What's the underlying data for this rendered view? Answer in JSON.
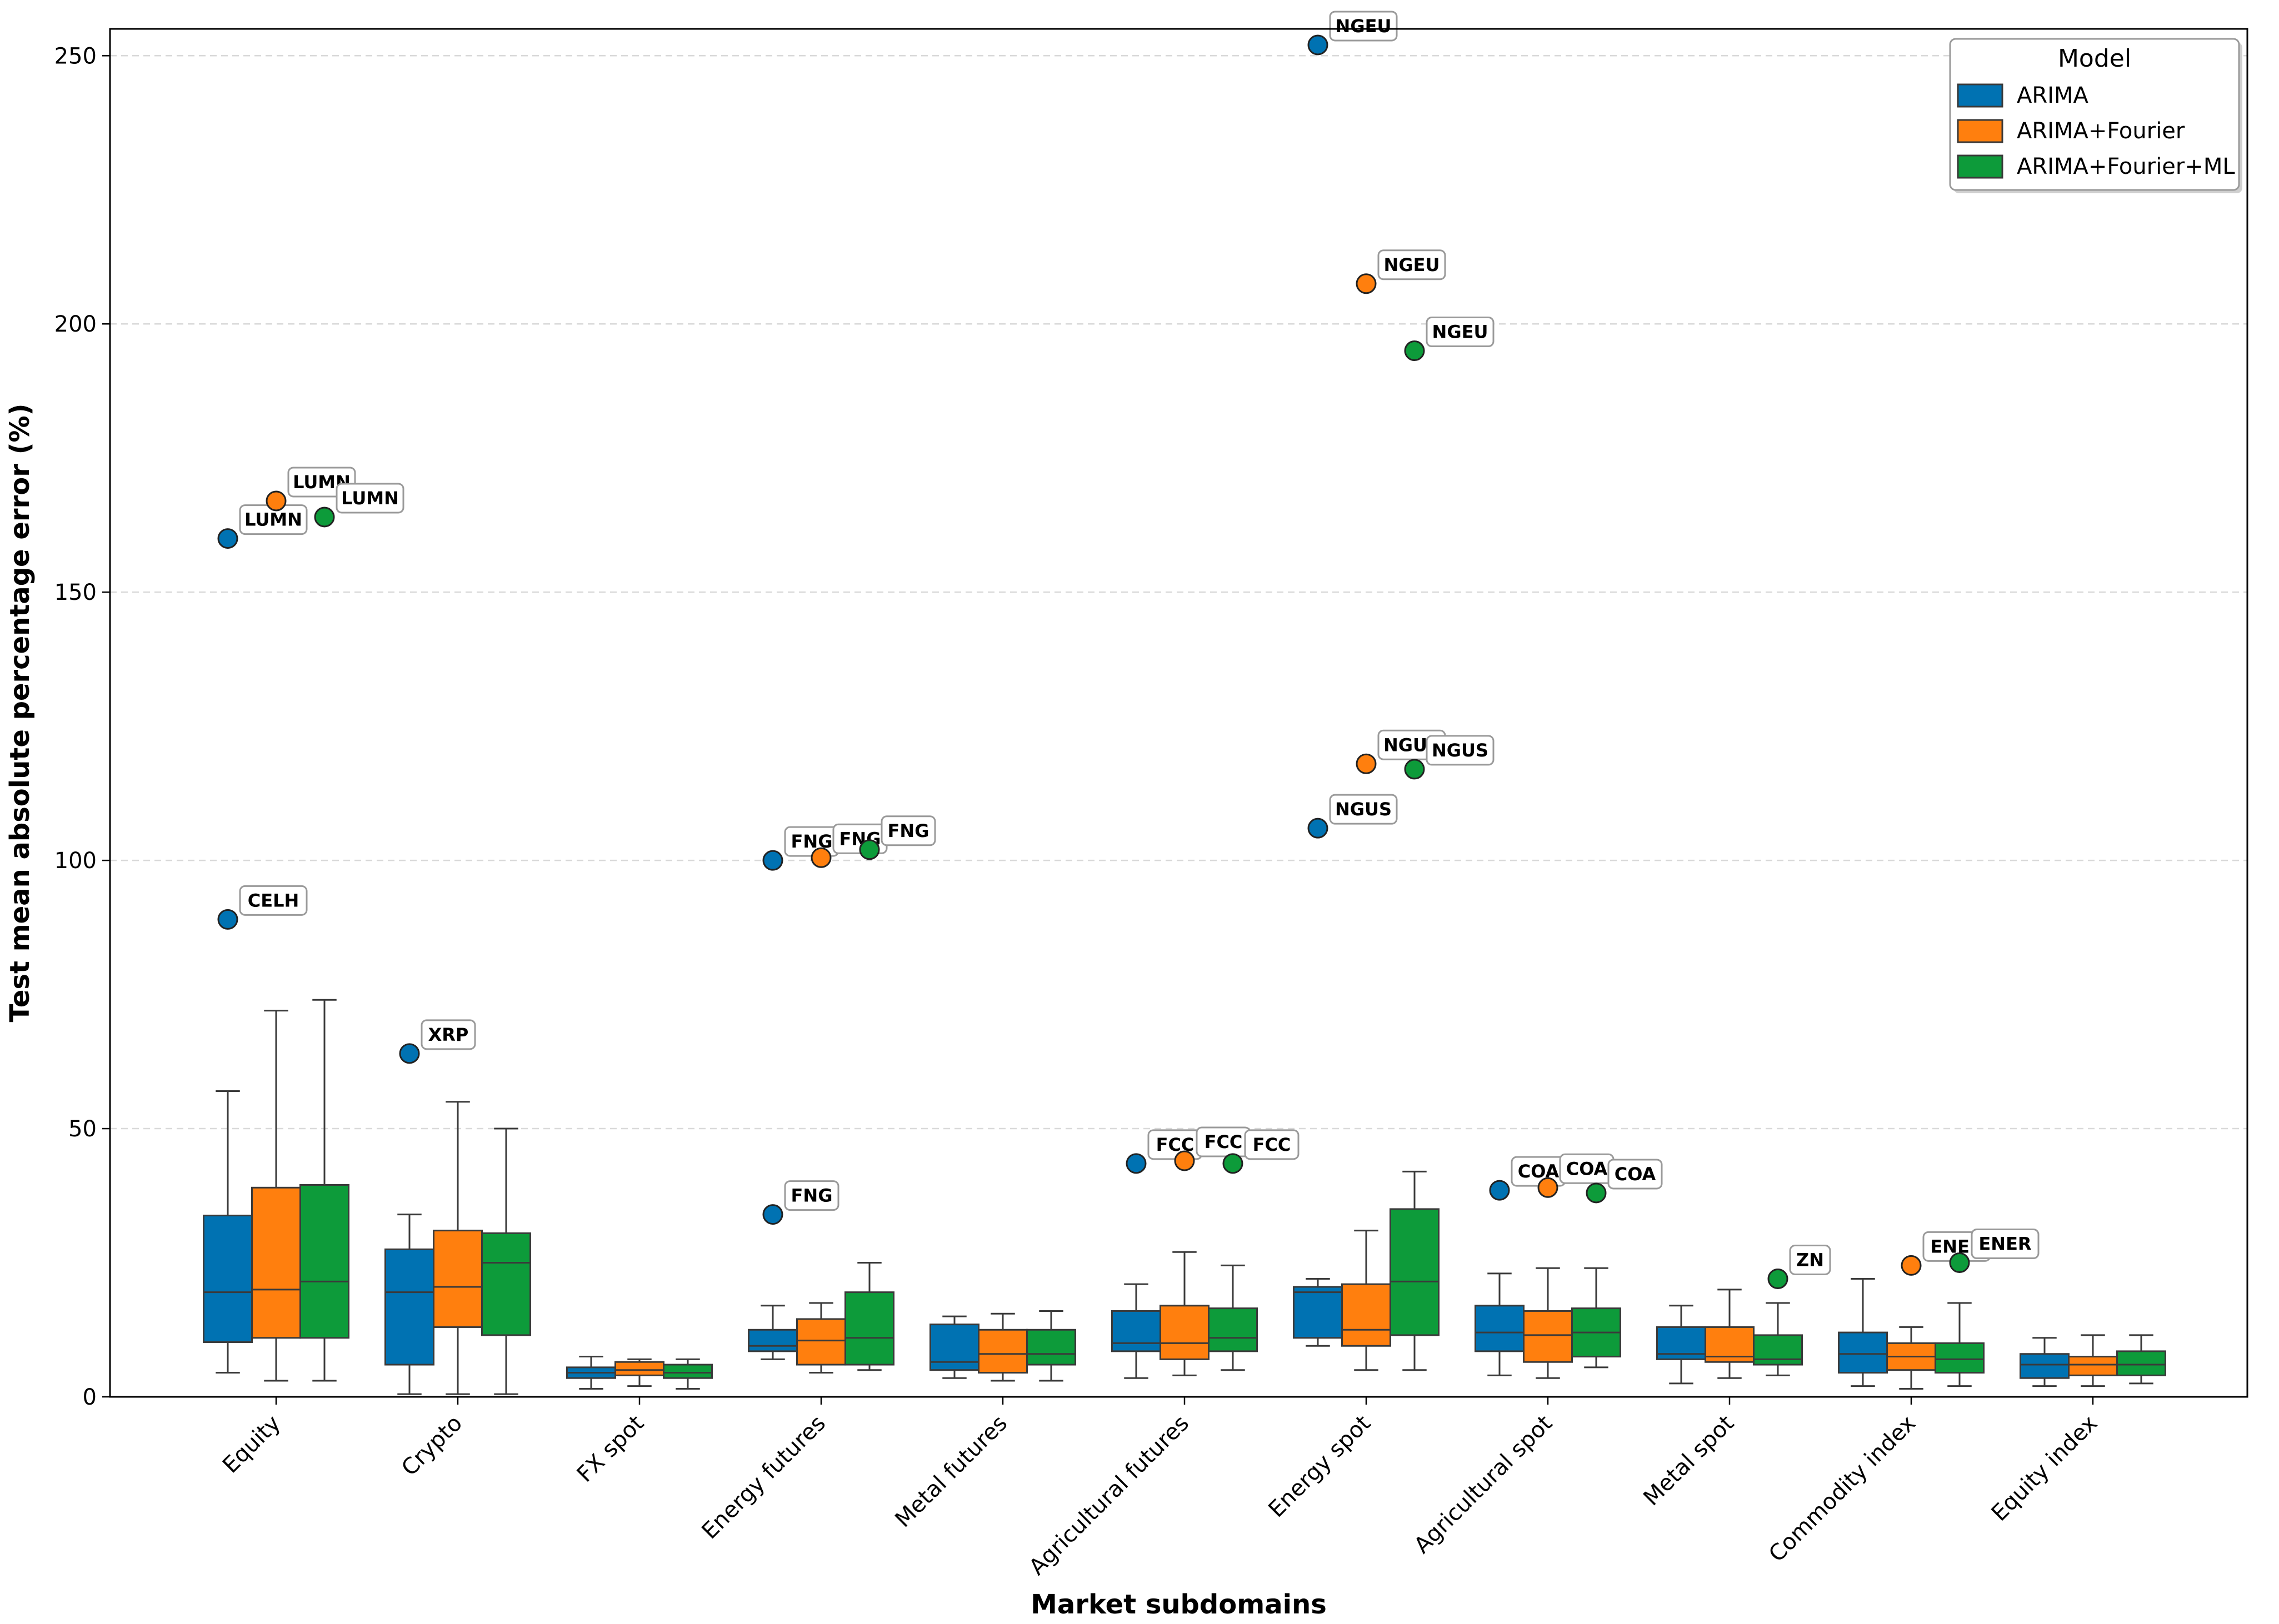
{
  "chart_data": {
    "type": "box",
    "xlabel": "Market subdomains",
    "ylabel": "Test mean absolute percentage error (%)",
    "ylim": [
      0,
      255
    ],
    "yticks": [
      0,
      50,
      100,
      150,
      200,
      250
    ],
    "grid": "horizontal dashed",
    "legend": {
      "title": "Model",
      "placement": "top-right"
    },
    "categories": [
      "Equity",
      "Crypto",
      "FX spot",
      "Energy futures",
      "Metal futures",
      "Agricultural futures",
      "Energy spot",
      "Agricultural spot",
      "Metal spot",
      "Commodity index",
      "Equity index"
    ],
    "series": [
      {
        "name": "ARIMA",
        "color": "#0072B2",
        "boxes": [
          {
            "whislo": 4.5,
            "q1": 10.2,
            "med": 19.5,
            "q3": 33.8,
            "whishi": 57
          },
          {
            "whislo": 0.5,
            "q1": 6,
            "med": 19.5,
            "q3": 27.5,
            "whishi": 34
          },
          {
            "whislo": 1.5,
            "q1": 3.5,
            "med": 4.5,
            "q3": 5.5,
            "whishi": 7.5
          },
          {
            "whislo": 7,
            "q1": 8.5,
            "med": 9.5,
            "q3": 12.5,
            "whishi": 17
          },
          {
            "whislo": 3.5,
            "q1": 5,
            "med": 6.5,
            "q3": 13.5,
            "whishi": 15
          },
          {
            "whislo": 3.5,
            "q1": 8.5,
            "med": 10,
            "q3": 16,
            "whishi": 21
          },
          {
            "whislo": 9.5,
            "q1": 11,
            "med": 19.5,
            "q3": 20.5,
            "whishi": 22
          },
          {
            "whislo": 4,
            "q1": 8.5,
            "med": 12,
            "q3": 17,
            "whishi": 23
          },
          {
            "whislo": 2.5,
            "q1": 7,
            "med": 8,
            "q3": 13,
            "whishi": 17
          },
          {
            "whislo": 2,
            "q1": 4.5,
            "med": 8,
            "q3": 12,
            "whishi": 22
          },
          {
            "whislo": 2,
            "q1": 3.5,
            "med": 6,
            "q3": 8,
            "whishi": 11
          }
        ],
        "outliers": [
          {
            "category": "Equity",
            "value": 160,
            "label": "LUMN"
          },
          {
            "category": "Equity",
            "value": 89,
            "label": "CELH"
          },
          {
            "category": "Crypto",
            "value": 64,
            "label": "XRP"
          },
          {
            "category": "Energy futures",
            "value": 100,
            "label": "FNG"
          },
          {
            "category": "Energy futures",
            "value": 34,
            "label": "FNG"
          },
          {
            "category": "Agricultural futures",
            "value": 43.5,
            "label": "FCC"
          },
          {
            "category": "Energy spot",
            "value": 252,
            "label": "NGEU"
          },
          {
            "category": "Energy spot",
            "value": 106,
            "label": "NGUS"
          },
          {
            "category": "Agricultural spot",
            "value": 38.5,
            "label": "COA"
          }
        ]
      },
      {
        "name": "ARIMA+Fourier",
        "color": "#FF7F0E",
        "boxes": [
          {
            "whislo": 3,
            "q1": 11,
            "med": 20,
            "q3": 39,
            "whishi": 72
          },
          {
            "whislo": 0.5,
            "q1": 13,
            "med": 20.5,
            "q3": 31,
            "whishi": 55
          },
          {
            "whislo": 2,
            "q1": 4,
            "med": 5,
            "q3": 6.5,
            "whishi": 7
          },
          {
            "whislo": 4.5,
            "q1": 6,
            "med": 10.5,
            "q3": 14.5,
            "whishi": 17.5
          },
          {
            "whislo": 3,
            "q1": 4.5,
            "med": 8,
            "q3": 12.5,
            "whishi": 15.5
          },
          {
            "whislo": 4,
            "q1": 7,
            "med": 10,
            "q3": 17,
            "whishi": 27
          },
          {
            "whislo": 5,
            "q1": 9.5,
            "med": 12.5,
            "q3": 21,
            "whishi": 31
          },
          {
            "whislo": 3.5,
            "q1": 6.5,
            "med": 11.5,
            "q3": 16,
            "whishi": 24
          },
          {
            "whislo": 3.5,
            "q1": 6.5,
            "med": 7.5,
            "q3": 13,
            "whishi": 20
          },
          {
            "whislo": 1.5,
            "q1": 5,
            "med": 7.5,
            "q3": 10,
            "whishi": 13
          },
          {
            "whislo": 2,
            "q1": 4,
            "med": 6,
            "q3": 7.5,
            "whishi": 11.5
          }
        ],
        "outliers": [
          {
            "category": "Equity",
            "value": 167,
            "label": "LUMN"
          },
          {
            "category": "Energy futures",
            "value": 100.5,
            "label": "FNG"
          },
          {
            "category": "Agricultural futures",
            "value": 44,
            "label": "FCC"
          },
          {
            "category": "Energy spot",
            "value": 207.5,
            "label": "NGEU"
          },
          {
            "category": "Energy spot",
            "value": 118,
            "label": "NGUS"
          },
          {
            "category": "Agricultural spot",
            "value": 39,
            "label": "COA"
          },
          {
            "category": "Commodity index",
            "value": 24.5,
            "label": "ENER"
          }
        ]
      },
      {
        "name": "ARIMA+Fourier+ML",
        "color": "#0D9B3A",
        "boxes": [
          {
            "whislo": 3,
            "q1": 11,
            "med": 21.5,
            "q3": 39.5,
            "whishi": 74
          },
          {
            "whislo": 0.5,
            "q1": 11.5,
            "med": 25,
            "q3": 30.5,
            "whishi": 50
          },
          {
            "whislo": 1.5,
            "q1": 3.5,
            "med": 4.5,
            "q3": 6,
            "whishi": 7
          },
          {
            "whislo": 5,
            "q1": 6,
            "med": 11,
            "q3": 19.5,
            "whishi": 25
          },
          {
            "whislo": 3,
            "q1": 6,
            "med": 8,
            "q3": 12.5,
            "whishi": 16
          },
          {
            "whislo": 5,
            "q1": 8.5,
            "med": 11,
            "q3": 16.5,
            "whishi": 24.5
          },
          {
            "whislo": 5,
            "q1": 11.5,
            "med": 21.5,
            "q3": 35,
            "whishi": 42
          },
          {
            "whislo": 5.5,
            "q1": 7.5,
            "med": 12,
            "q3": 16.5,
            "whishi": 24
          },
          {
            "whislo": 4,
            "q1": 6,
            "med": 7,
            "q3": 11.5,
            "whishi": 17.5
          },
          {
            "whislo": 2,
            "q1": 4.5,
            "med": 7,
            "q3": 10,
            "whishi": 17.5
          },
          {
            "whislo": 2.5,
            "q1": 4,
            "med": 6,
            "q3": 8.5,
            "whishi": 11.5
          }
        ],
        "outliers": [
          {
            "category": "Equity",
            "value": 164,
            "label": "LUMN"
          },
          {
            "category": "Energy futures",
            "value": 102,
            "label": "FNG"
          },
          {
            "category": "Agricultural futures",
            "value": 43.5,
            "label": "FCC"
          },
          {
            "category": "Energy spot",
            "value": 195,
            "label": "NGEU"
          },
          {
            "category": "Energy spot",
            "value": 117,
            "label": "NGUS"
          },
          {
            "category": "Agricultural spot",
            "value": 38,
            "label": "COA"
          },
          {
            "category": "Metal spot",
            "value": 22,
            "label": "ZN"
          },
          {
            "category": "Commodity index",
            "value": 25,
            "label": "ENER"
          }
        ]
      }
    ]
  }
}
